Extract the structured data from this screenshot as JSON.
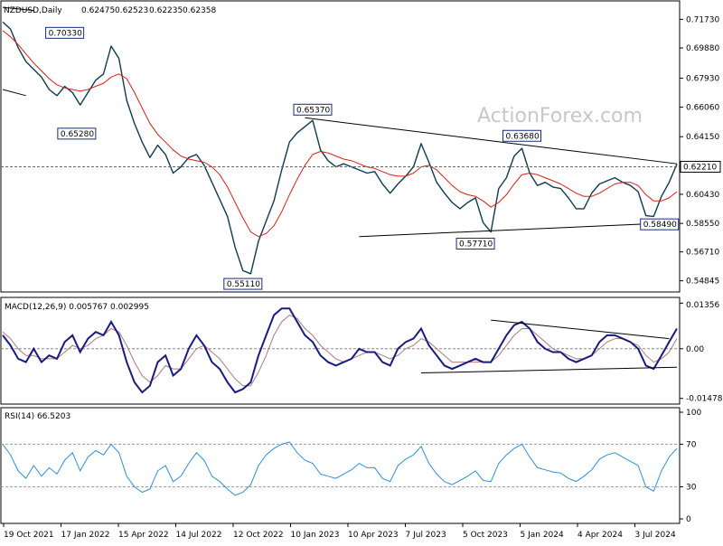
{
  "chart_data": [
    {
      "type": "line",
      "title": "NZDUSD,Daily",
      "header_values": [
        "0.62475",
        "0.62523",
        "0.62235",
        "0.62358"
      ],
      "x_ticks": [
        "19 Oct 2021",
        "17 Jan 2022",
        "15 Apr 2022",
        "14 Jul 2022",
        "12 Oct 2022",
        "10 Jan 2023",
        "10 Apr 2023",
        "7 Jul 2023",
        "5 Oct 2023",
        "5 Jan 2024",
        "4 Apr 2024",
        "3 Jul 2024"
      ],
      "y_ticks": [
        "0.71730",
        "0.69880",
        "0.67930",
        "0.66060",
        "0.64150",
        "0.62210",
        "0.60430",
        "0.58550",
        "0.56710",
        "0.54845"
      ],
      "ylim": [
        0.5418,
        0.7286
      ],
      "current_price": "0.62210",
      "watermark": "ActionForex.com",
      "series": [
        {
          "name": "price",
          "color": "#0e3b4f",
          "values": [
            0.7155,
            0.711,
            0.699,
            0.69,
            0.685,
            0.68,
            0.672,
            0.668,
            0.674,
            0.67,
            0.662,
            0.67,
            0.678,
            0.682,
            0.7,
            0.692,
            0.665,
            0.65,
            0.638,
            0.628,
            0.636,
            0.63,
            0.618,
            0.622,
            0.628,
            0.63,
            0.623,
            0.612,
            0.601,
            0.59,
            0.57,
            0.555,
            0.553,
            0.574,
            0.587,
            0.6,
            0.62,
            0.638,
            0.644,
            0.648,
            0.652,
            0.633,
            0.626,
            0.622,
            0.624,
            0.622,
            0.62,
            0.618,
            0.619,
            0.611,
            0.605,
            0.611,
            0.616,
            0.622,
            0.637,
            0.625,
            0.612,
            0.605,
            0.599,
            0.595,
            0.599,
            0.602,
            0.586,
            0.58,
            0.608,
            0.615,
            0.629,
            0.634,
            0.618,
            0.61,
            0.612,
            0.609,
            0.608,
            0.602,
            0.595,
            0.595,
            0.605,
            0.611,
            0.613,
            0.615,
            0.612,
            0.61,
            0.606,
            0.5905,
            0.59,
            0.603,
            0.612,
            0.6238
          ]
        },
        {
          "name": "moving average",
          "color": "#d91e18",
          "values": [
            0.71,
            0.706,
            0.701,
            0.695,
            0.689,
            0.684,
            0.679,
            0.675,
            0.673,
            0.672,
            0.671,
            0.672,
            0.674,
            0.676,
            0.68,
            0.682,
            0.679,
            0.67,
            0.66,
            0.65,
            0.643,
            0.638,
            0.633,
            0.629,
            0.627,
            0.626,
            0.625,
            0.622,
            0.617,
            0.609,
            0.599,
            0.589,
            0.58,
            0.577,
            0.579,
            0.584,
            0.593,
            0.604,
            0.614,
            0.623,
            0.63,
            0.632,
            0.631,
            0.629,
            0.627,
            0.626,
            0.624,
            0.622,
            0.621,
            0.619,
            0.617,
            0.616,
            0.616,
            0.618,
            0.622,
            0.623,
            0.62,
            0.615,
            0.61,
            0.606,
            0.604,
            0.603,
            0.6,
            0.596,
            0.599,
            0.604,
            0.611,
            0.617,
            0.618,
            0.617,
            0.615,
            0.613,
            0.611,
            0.608,
            0.605,
            0.603,
            0.603,
            0.605,
            0.608,
            0.611,
            0.612,
            0.612,
            0.61,
            0.604,
            0.6,
            0.6,
            0.602,
            0.606
          ]
        }
      ],
      "annotations": [
        {
          "label": "0.70330",
          "x": 8,
          "y": 0.7033
        },
        {
          "label": "0.65280",
          "x": 5,
          "y": 0.6528
        },
        {
          "label": "0.55110",
          "x": 31,
          "y": 0.5511
        },
        {
          "label": "0.65370",
          "x": 40,
          "y": 0.6537
        },
        {
          "label": "0.57710",
          "x": 61,
          "y": 0.5771
        },
        {
          "label": "0.63680",
          "x": 67,
          "y": 0.6368
        },
        {
          "label": "0.58490",
          "x": 83,
          "y": 0.5849
        }
      ],
      "trendlines": [
        {
          "from": [
            0,
            0.725
          ],
          "to": [
            4,
            0.723
          ]
        },
        {
          "from": [
            0,
            0.672
          ],
          "to": [
            3,
            0.668
          ]
        },
        {
          "from": [
            39,
            0.6537
          ],
          "to": [
            87,
            0.624
          ]
        },
        {
          "from": [
            46,
            0.577
          ],
          "to": [
            87,
            0.586
          ]
        }
      ]
    },
    {
      "type": "line",
      "title": "MACD(12,26,9) 0.005767 0.002995",
      "y_ticks": [
        "0.01356",
        "0.00",
        "-0.014783"
      ],
      "ylim": [
        -0.0162,
        0.015
      ],
      "series": [
        {
          "name": "MACD",
          "color": "#1a1a80",
          "values": [
            0.004,
            0.001,
            -0.003,
            -0.004,
            0.0,
            -0.004,
            -0.002,
            -0.003,
            0.002,
            0.004,
            -0.001,
            0.003,
            0.005,
            0.004,
            0.008,
            0.004,
            -0.004,
            -0.01,
            -0.013,
            -0.011,
            -0.004,
            -0.002,
            -0.008,
            -0.006,
            0.0,
            0.004,
            0.001,
            -0.004,
            -0.006,
            -0.01,
            -0.013,
            -0.012,
            -0.01,
            -0.002,
            0.004,
            0.01,
            0.012,
            0.012,
            0.008,
            0.004,
            0.002,
            -0.002,
            -0.004,
            -0.005,
            -0.004,
            -0.003,
            0.0,
            -0.001,
            -0.001,
            -0.004,
            -0.005,
            0.0,
            0.002,
            0.003,
            0.006,
            0.001,
            -0.002,
            -0.005,
            -0.006,
            -0.005,
            -0.004,
            -0.003,
            -0.004,
            -0.004,
            0.0,
            0.004,
            0.007,
            0.008,
            0.006,
            0.002,
            0.0,
            -0.001,
            -0.001,
            -0.003,
            -0.004,
            -0.003,
            -0.002,
            0.002,
            0.004,
            0.004,
            0.003,
            0.002,
            0.0,
            -0.005,
            -0.006,
            -0.002,
            0.002,
            0.006
          ]
        },
        {
          "name": "signal",
          "color": "#b07878",
          "values": [
            0.005,
            0.003,
            0.0,
            -0.002,
            -0.002,
            -0.003,
            -0.003,
            -0.003,
            -0.001,
            0.001,
            0.0,
            0.001,
            0.003,
            0.004,
            0.006,
            0.005,
            0.001,
            -0.004,
            -0.008,
            -0.01,
            -0.008,
            -0.005,
            -0.006,
            -0.006,
            -0.003,
            0.0,
            0.001,
            -0.001,
            -0.003,
            -0.006,
            -0.009,
            -0.011,
            -0.011,
            -0.007,
            -0.002,
            0.004,
            0.008,
            0.01,
            0.009,
            0.006,
            0.004,
            0.001,
            -0.001,
            -0.003,
            -0.004,
            -0.003,
            -0.002,
            -0.001,
            -0.001,
            -0.002,
            -0.003,
            -0.002,
            0.0,
            0.001,
            0.003,
            0.002,
            0.0,
            -0.002,
            -0.004,
            -0.004,
            -0.004,
            -0.004,
            -0.004,
            -0.004,
            -0.002,
            0.001,
            0.004,
            0.006,
            0.006,
            0.004,
            0.002,
            0.0,
            -0.001,
            -0.002,
            -0.003,
            -0.003,
            -0.002,
            0.0,
            0.002,
            0.003,
            0.003,
            0.002,
            0.001,
            -0.002,
            -0.004,
            -0.003,
            -0.001,
            0.003
          ]
        }
      ],
      "trendlines": [
        {
          "from": [
            63,
            0.0085
          ],
          "to": [
            86,
            0.003
          ]
        },
        {
          "from": [
            54,
            -0.0072
          ],
          "to": [
            87,
            -0.0055
          ]
        }
      ]
    },
    {
      "type": "line",
      "title": "RSI(14) 66.5203",
      "y_ticks": [
        "100",
        "70",
        "30",
        "0"
      ],
      "ylim": [
        0,
        100
      ],
      "levels": [
        70,
        30
      ],
      "series": [
        {
          "name": "RSI",
          "color": "#2e8fd6",
          "values": [
            70,
            60,
            45,
            38,
            50,
            40,
            48,
            42,
            55,
            62,
            45,
            58,
            64,
            60,
            70,
            62,
            40,
            30,
            25,
            28,
            45,
            50,
            35,
            40,
            52,
            62,
            55,
            40,
            35,
            28,
            22,
            25,
            32,
            50,
            60,
            66,
            70,
            72,
            62,
            55,
            52,
            42,
            40,
            38,
            42,
            46,
            52,
            48,
            48,
            38,
            35,
            50,
            56,
            60,
            68,
            52,
            42,
            35,
            32,
            36,
            40,
            45,
            36,
            35,
            52,
            60,
            66,
            70,
            58,
            48,
            46,
            44,
            43,
            38,
            35,
            40,
            46,
            56,
            60,
            62,
            58,
            54,
            50,
            30,
            26,
            45,
            58,
            66
          ]
        }
      ]
    }
  ]
}
